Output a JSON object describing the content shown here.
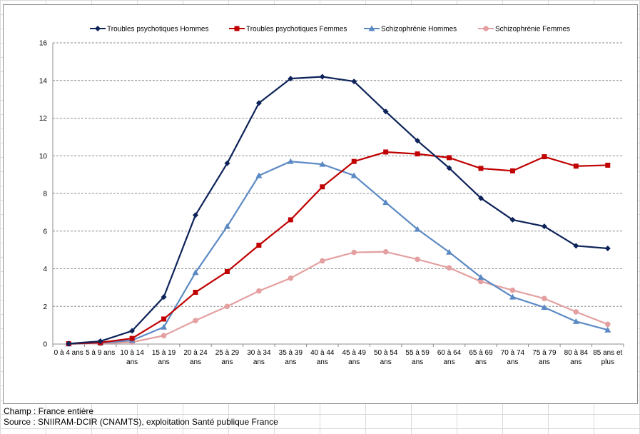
{
  "footnotes": {
    "champ": "Champ : France entière",
    "source": "Source : SNIIRAM-DCIR (CNAMTS), exploitation Santé publique France"
  },
  "chart_data": {
    "type": "line",
    "title": "",
    "xlabel": "",
    "ylabel": "",
    "ylim": [
      0,
      16
    ],
    "yticks": [
      "0",
      "2",
      "4",
      "6",
      "8",
      "10",
      "12",
      "14",
      "16"
    ],
    "grid": true,
    "legend_position": "top",
    "categories": [
      [
        "0 à 4 ans"
      ],
      [
        "5 à 9 ans"
      ],
      [
        "10 à 14",
        "ans"
      ],
      [
        "15 à 19",
        "ans"
      ],
      [
        "20 à 24",
        "ans"
      ],
      [
        "25 à 29",
        "ans"
      ],
      [
        "30 à 34",
        "ans"
      ],
      [
        "35 à 39",
        "ans"
      ],
      [
        "40 à 44",
        "ans"
      ],
      [
        "45 à 49",
        "ans"
      ],
      [
        "50 à 54",
        "ans"
      ],
      [
        "55 à 59",
        "ans"
      ],
      [
        "60 à 64",
        "ans"
      ],
      [
        "65 à 69",
        "ans"
      ],
      [
        "70 à 74",
        "ans"
      ],
      [
        "75 à 79",
        "ans"
      ],
      [
        "80 à 84",
        "ans"
      ],
      [
        "85 ans et",
        "plus"
      ]
    ],
    "series": [
      {
        "name": "Troubles psychotiques Hommes",
        "color": "#0d2359",
        "marker": "diamond",
        "values": [
          0.02,
          0.15,
          0.7,
          2.5,
          6.85,
          9.6,
          12.8,
          14.1,
          14.2,
          13.95,
          12.35,
          10.8,
          9.35,
          7.75,
          6.6,
          6.25,
          5.22,
          5.08
        ]
      },
      {
        "name": "Troubles psychotiques Femmes",
        "color": "#c00000",
        "marker": "square",
        "values": [
          0.02,
          0.08,
          0.3,
          1.33,
          2.75,
          3.85,
          5.25,
          6.6,
          8.35,
          9.7,
          10.2,
          10.1,
          9.9,
          9.33,
          9.2,
          9.95,
          9.45,
          9.5
        ]
      },
      {
        "name": "Schizophrénie Hommes",
        "color": "#5b89c3",
        "marker": "triangle",
        "values": [
          0.01,
          0.06,
          0.2,
          0.9,
          3.8,
          6.25,
          8.95,
          9.7,
          9.55,
          8.95,
          7.52,
          6.1,
          4.88,
          3.55,
          2.5,
          1.95,
          1.2,
          0.75
        ]
      },
      {
        "name": "Schizophrénie Femmes",
        "color": "#e4a0a0",
        "marker": "circle",
        "values": [
          0.01,
          0.03,
          0.1,
          0.45,
          1.25,
          2.0,
          2.82,
          3.5,
          4.42,
          4.87,
          4.9,
          4.5,
          4.05,
          3.32,
          2.86,
          2.42,
          1.71,
          1.05
        ]
      }
    ]
  }
}
